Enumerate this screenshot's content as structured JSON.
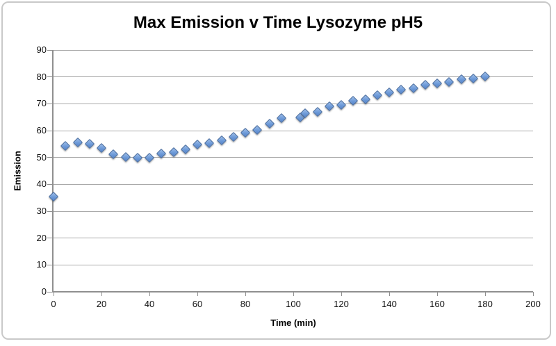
{
  "title": "Max Emission v Time Lysozyme pH5",
  "chart_data": {
    "type": "scatter",
    "title": "Max Emission v Time Lysozyme pH5",
    "xlabel": "Time (min)",
    "ylabel": "Emission",
    "xlim": [
      0,
      200
    ],
    "ylim": [
      0,
      90
    ],
    "xticks": [
      0,
      20,
      40,
      60,
      80,
      100,
      120,
      140,
      160,
      180,
      200
    ],
    "yticks": [
      0,
      10,
      20,
      30,
      40,
      50,
      60,
      70,
      80,
      90
    ],
    "grid": "horizontal",
    "legend": "none",
    "marker": {
      "shape": "diamond",
      "fill": "#6D9AD8",
      "fill_highlight": "#9DBDE9",
      "border": "#44699D"
    },
    "colors": {
      "gridline": "#A9A9A9",
      "axis": "#8F8F8F",
      "text": "#000000",
      "frame_border": "#C9C9C9",
      "background": "#FFFFFF"
    },
    "points": [
      [
        0,
        35.5
      ],
      [
        5,
        54.3
      ],
      [
        10,
        55.5
      ],
      [
        15,
        55
      ],
      [
        20,
        53.5
      ],
      [
        25,
        51.3
      ],
      [
        30,
        50.1
      ],
      [
        35,
        50
      ],
      [
        40,
        49.8
      ],
      [
        45,
        51.4
      ],
      [
        50,
        51.9
      ],
      [
        55,
        53
      ],
      [
        60,
        54.8
      ],
      [
        65,
        55.4
      ],
      [
        70,
        56.5
      ],
      [
        75,
        57.7
      ],
      [
        80,
        59.3
      ],
      [
        85,
        60.2
      ],
      [
        90,
        62.5
      ],
      [
        95,
        64.7
      ],
      [
        103,
        64.9
      ],
      [
        105,
        66.4
      ],
      [
        110,
        67
      ],
      [
        115,
        69
      ],
      [
        120,
        69.6
      ],
      [
        125,
        71
      ],
      [
        130,
        71.7
      ],
      [
        135,
        73.1
      ],
      [
        140,
        74.1
      ],
      [
        145,
        75.3
      ],
      [
        150,
        75.7
      ],
      [
        155,
        77
      ],
      [
        160,
        77.7
      ],
      [
        165,
        78.1
      ],
      [
        170,
        79.2
      ],
      [
        175,
        79.4
      ],
      [
        180,
        80.3
      ]
    ]
  }
}
